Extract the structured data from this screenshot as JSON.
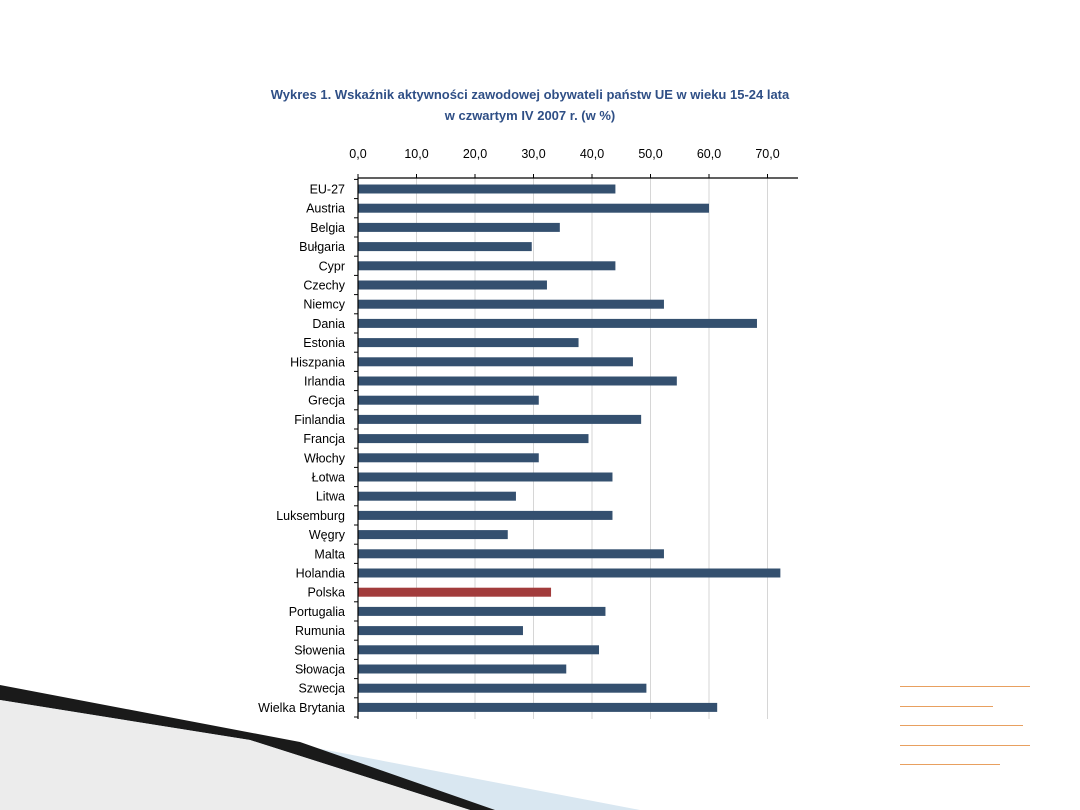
{
  "slide": {
    "accent_color": "#e8a060",
    "decoration_colors": [
      "#1a1a1a",
      "#cfe0ec"
    ]
  },
  "chart_data": {
    "type": "bar",
    "orientation": "horizontal",
    "title": "Wykres 1. Wskaźnik aktywności zawodowej obywateli państw UE w wieku 15-24 lata",
    "subtitle": "w czwartym IV 2007 r. (w %)",
    "xlim": [
      0,
      75
    ],
    "xticks": [
      0,
      10,
      20,
      30,
      40,
      50,
      60,
      70
    ],
    "xtick_labels": [
      "0,0",
      "10,0",
      "20,0",
      "30,0",
      "40,0",
      "50,0",
      "60,0",
      "70,0"
    ],
    "axis_position": "top",
    "grid": true,
    "bar_color": "#34506f",
    "highlight_color": "#a23c3c",
    "highlight_category": "Polska",
    "categories": [
      "EU-27",
      "Austria",
      "Belgia",
      "Bułgaria",
      "Cypr",
      "Czechy",
      "Niemcy",
      "Dania",
      "Estonia",
      "Hiszpania",
      "Irlandia",
      "Grecja",
      "Finlandia",
      "Francja",
      "Włochy",
      "Łotwa",
      "Litwa",
      "Luksemburg",
      "Węgry",
      "Malta",
      "Holandia",
      "Polska",
      "Portugalia",
      "Rumunia",
      "Słowenia",
      "Słowacja",
      "Szwecja",
      "Wielka Brytania"
    ],
    "values": [
      44.0,
      60.0,
      34.5,
      29.7,
      44.0,
      32.3,
      52.3,
      68.2,
      37.7,
      47.0,
      54.5,
      30.9,
      48.4,
      39.4,
      30.9,
      43.5,
      27.0,
      43.5,
      25.6,
      52.3,
      72.2,
      33.0,
      42.3,
      28.2,
      41.2,
      35.6,
      49.3,
      61.4
    ]
  }
}
